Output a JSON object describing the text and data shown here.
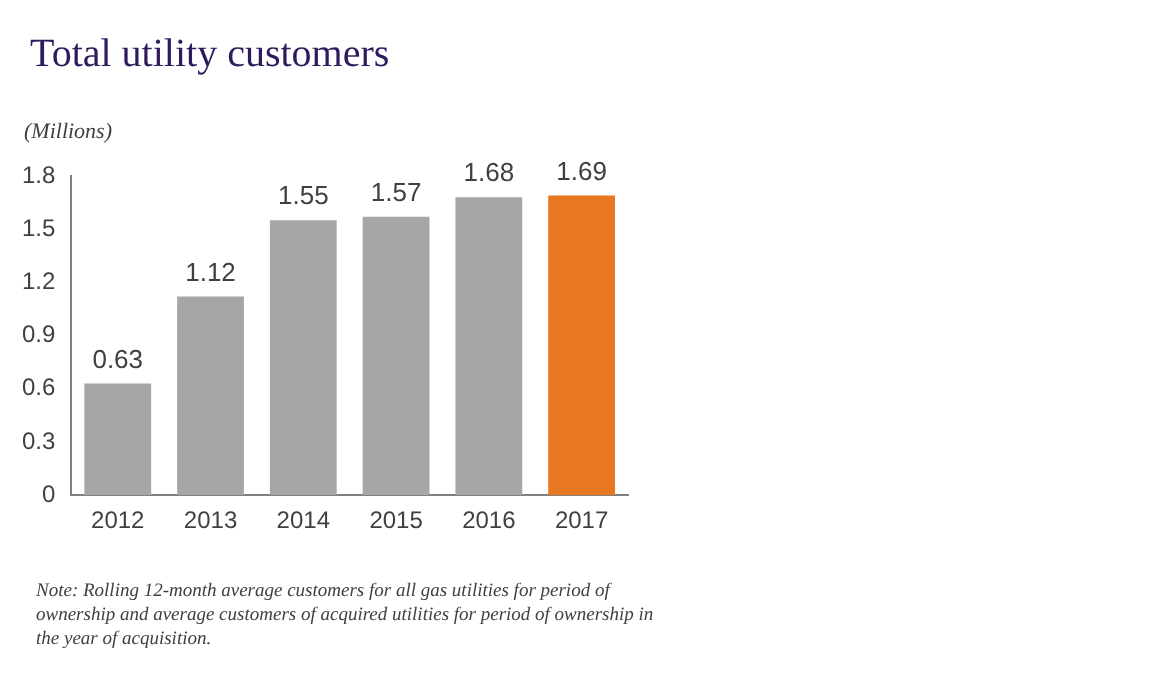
{
  "chart_data": {
    "type": "bar",
    "title": "Total utility customers",
    "ylabel": "(Millions)",
    "categories": [
      "2012",
      "2013",
      "2014",
      "2015",
      "2016",
      "2017"
    ],
    "values": [
      0.63,
      1.12,
      1.55,
      1.57,
      1.68,
      1.69
    ],
    "colors": [
      "#a6a6a6",
      "#a6a6a6",
      "#a6a6a6",
      "#a6a6a6",
      "#a6a6a6",
      "#e87722"
    ],
    "ylim": [
      0,
      1.8
    ],
    "yticks": [
      0,
      0.3,
      0.6,
      0.9,
      1.2,
      1.5,
      1.8
    ],
    "grid": false,
    "legend": false,
    "data_labels": true,
    "annotations": [
      "Note: Rolling 12-month average customers for all gas utilities for period of ownership and average customers of acquired utilities for period of ownership in the year of acquisition."
    ]
  }
}
